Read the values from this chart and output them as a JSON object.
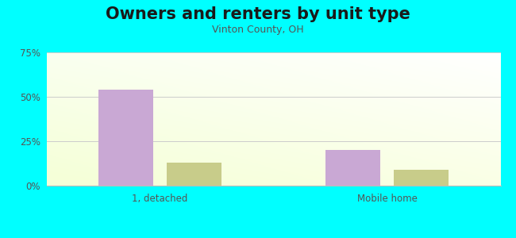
{
  "title": "Owners and renters by unit type",
  "subtitle": "Vinton County, OH",
  "categories": [
    "1, detached",
    "Mobile home"
  ],
  "owner_values": [
    54,
    20
  ],
  "renter_values": [
    13,
    9
  ],
  "owner_color": "#c9a8d4",
  "renter_color": "#c8cc8a",
  "bar_width": 0.12,
  "ylim": [
    0,
    75
  ],
  "yticks": [
    0,
    25,
    50,
    75
  ],
  "ytick_labels": [
    "0%",
    "25%",
    "50%",
    "75%"
  ],
  "bg_color": "#00FFFF",
  "title_fontsize": 15,
  "subtitle_fontsize": 9,
  "group_centers": [
    0.25,
    0.75
  ],
  "xlim": [
    0.0,
    1.0
  ]
}
